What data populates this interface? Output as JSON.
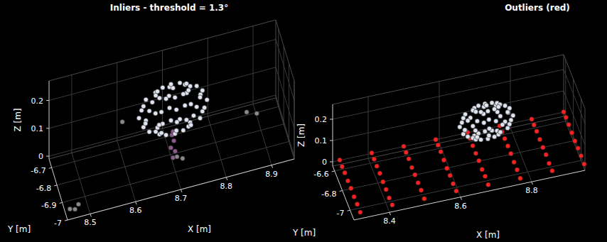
{
  "chart_data": [
    {
      "type": "scatter3d",
      "title": "Inliers - threshold = 1.3°",
      "x_label": "X [m]",
      "y_label": "Y [m]",
      "z_label": "Z [m]",
      "xlim": [
        8.45,
        8.95
      ],
      "ylim": [
        -7.0,
        -6.65
      ],
      "zlim": [
        -0.01,
        0.27
      ],
      "xticks": [
        8.5,
        8.6,
        8.7,
        8.8,
        8.9
      ],
      "yticks": [
        -6.7,
        -6.8,
        -6.9,
        -7
      ],
      "zticks": [
        0,
        0.1,
        0.2
      ],
      "grid": true,
      "series": [
        {
          "color": "#dfe3ef",
          "marker": "circle",
          "x": [
            8.738,
            8.732,
            8.719,
            8.7,
            8.681,
            8.668,
            8.662,
            8.668,
            8.681,
            8.7,
            8.719,
            8.732,
            8.765,
            8.756,
            8.733,
            8.7,
            8.668,
            8.644,
            8.635,
            8.644,
            8.668,
            8.7,
            8.733,
            8.756,
            8.775,
            8.765,
            8.738,
            8.7,
            8.662,
            8.635,
            8.625,
            8.635,
            8.662,
            8.7,
            8.738,
            8.765,
            8.765,
            8.756,
            8.733,
            8.7,
            8.668,
            8.644,
            8.635,
            8.644,
            8.668,
            8.7,
            8.733,
            8.756,
            8.738,
            8.732,
            8.719,
            8.7,
            8.681,
            8.668,
            8.662,
            8.668,
            8.681,
            8.7,
            8.719,
            8.732,
            8.7
          ],
          "y": [
            -6.85,
            -6.831,
            -6.818,
            -6.812,
            -6.818,
            -6.831,
            -6.85,
            -6.869,
            -6.882,
            -6.888,
            -6.882,
            -6.869,
            -6.85,
            -6.818,
            -6.794,
            -6.785,
            -6.794,
            -6.818,
            -6.85,
            -6.883,
            -6.906,
            -6.915,
            -6.906,
            -6.883,
            -6.85,
            -6.813,
            -6.785,
            -6.775,
            -6.785,
            -6.813,
            -6.85,
            -6.888,
            -6.915,
            -6.925,
            -6.915,
            -6.888,
            -6.85,
            -6.818,
            -6.794,
            -6.785,
            -6.794,
            -6.818,
            -6.85,
            -6.883,
            -6.906,
            -6.915,
            -6.906,
            -6.883,
            -6.85,
            -6.831,
            -6.818,
            -6.812,
            -6.818,
            -6.831,
            -6.85,
            -6.869,
            -6.882,
            -6.888,
            -6.882,
            -6.869,
            -6.85
          ],
          "z": [
            0.25,
            0.25,
            0.25,
            0.25,
            0.25,
            0.25,
            0.25,
            0.25,
            0.25,
            0.25,
            0.25,
            0.25,
            0.223,
            0.223,
            0.223,
            0.223,
            0.223,
            0.223,
            0.223,
            0.223,
            0.223,
            0.223,
            0.223,
            0.223,
            0.185,
            0.185,
            0.185,
            0.185,
            0.185,
            0.185,
            0.185,
            0.185,
            0.185,
            0.185,
            0.185,
            0.185,
            0.148,
            0.148,
            0.148,
            0.148,
            0.148,
            0.148,
            0.148,
            0.148,
            0.148,
            0.148,
            0.148,
            0.148,
            0.12,
            0.12,
            0.12,
            0.12,
            0.12,
            0.12,
            0.12,
            0.12,
            0.12,
            0.12,
            0.12,
            0.12,
            0.26
          ]
        },
        {
          "color": "#8c5a8c",
          "marker": "circle",
          "x": [
            8.7,
            8.705,
            8.695,
            8.702,
            8.698,
            8.7
          ],
          "y": [
            -6.85,
            -6.848,
            -6.853,
            -6.85,
            -6.846,
            -6.852
          ],
          "z": [
            0.01,
            0.03,
            0.05,
            0.07,
            0.09,
            0.105
          ]
        },
        {
          "color": "#8a8a8a",
          "marker": "circle",
          "x": [
            8.46,
            8.48,
            8.47,
            8.72,
            8.71,
            8.9,
            8.88,
            8.6
          ],
          "y": [
            -6.96,
            -6.95,
            -6.97,
            -6.86,
            -6.84,
            -6.72,
            -6.7,
            -6.75
          ],
          "z": [
            0,
            0.002,
            0.001,
            0.005,
            0.003,
            0,
            0.001,
            0.12
          ]
        }
      ]
    },
    {
      "type": "scatter3d",
      "title": "Outliers (red)",
      "x_label": "X [m]",
      "y_label": "Y [m]",
      "z_label": "Z [m]",
      "xlim": [
        8.3,
        8.95
      ],
      "ylim": [
        -7.1,
        -6.55
      ],
      "zlim": [
        -0.02,
        0.27
      ],
      "xticks": [
        8.4,
        8.6,
        8.8
      ],
      "yticks": [
        -6.6,
        -6.8,
        -7
      ],
      "zticks": [
        0,
        0.1,
        0.2
      ],
      "grid": true,
      "series": [
        {
          "color": "#dfe3ef",
          "marker": "circle",
          "x": [
            8.738,
            8.732,
            8.719,
            8.7,
            8.681,
            8.668,
            8.662,
            8.668,
            8.681,
            8.7,
            8.719,
            8.732,
            8.765,
            8.756,
            8.733,
            8.7,
            8.668,
            8.644,
            8.635,
            8.644,
            8.668,
            8.7,
            8.733,
            8.756,
            8.775,
            8.765,
            8.738,
            8.7,
            8.662,
            8.635,
            8.625,
            8.635,
            8.662,
            8.7,
            8.738,
            8.765,
            8.765,
            8.756,
            8.733,
            8.7,
            8.668,
            8.644,
            8.635,
            8.644,
            8.668,
            8.7,
            8.733,
            8.756,
            8.738,
            8.732,
            8.719,
            8.7,
            8.681,
            8.668,
            8.662,
            8.668,
            8.681,
            8.7,
            8.719,
            8.732,
            8.7
          ],
          "y": [
            -6.85,
            -6.831,
            -6.818,
            -6.812,
            -6.818,
            -6.831,
            -6.85,
            -6.869,
            -6.882,
            -6.888,
            -6.882,
            -6.869,
            -6.85,
            -6.818,
            -6.794,
            -6.785,
            -6.794,
            -6.818,
            -6.85,
            -6.883,
            -6.906,
            -6.915,
            -6.906,
            -6.883,
            -6.85,
            -6.813,
            -6.785,
            -6.775,
            -6.785,
            -6.813,
            -6.85,
            -6.888,
            -6.915,
            -6.925,
            -6.915,
            -6.888,
            -6.85,
            -6.818,
            -6.794,
            -6.785,
            -6.794,
            -6.818,
            -6.85,
            -6.883,
            -6.906,
            -6.915,
            -6.906,
            -6.883,
            -6.85,
            -6.831,
            -6.818,
            -6.812,
            -6.818,
            -6.831,
            -6.85,
            -6.869,
            -6.882,
            -6.888,
            -6.882,
            -6.869,
            -6.85
          ],
          "z": [
            0.25,
            0.25,
            0.25,
            0.25,
            0.25,
            0.25,
            0.25,
            0.25,
            0.25,
            0.25,
            0.25,
            0.25,
            0.223,
            0.223,
            0.223,
            0.223,
            0.223,
            0.223,
            0.223,
            0.223,
            0.223,
            0.223,
            0.223,
            0.223,
            0.185,
            0.185,
            0.185,
            0.185,
            0.185,
            0.185,
            0.185,
            0.185,
            0.185,
            0.185,
            0.185,
            0.185,
            0.148,
            0.148,
            0.148,
            0.148,
            0.148,
            0.148,
            0.148,
            0.148,
            0.148,
            0.148,
            0.148,
            0.148,
            0.12,
            0.12,
            0.12,
            0.12,
            0.12,
            0.12,
            0.12,
            0.12,
            0.12,
            0.12,
            0.12,
            0.12,
            0.26
          ]
        },
        {
          "color": "#ff2020",
          "marker": "circle",
          "x": [
            8.32,
            8.41,
            8.5,
            8.59,
            8.68,
            8.77,
            8.86,
            8.95,
            8.32,
            8.41,
            8.5,
            8.59,
            8.68,
            8.77,
            8.86,
            8.95,
            8.32,
            8.41,
            8.5,
            8.59,
            8.68,
            8.77,
            8.86,
            8.95,
            8.32,
            8.41,
            8.5,
            8.59,
            8.68,
            8.77,
            8.86,
            8.95,
            8.32,
            8.41,
            8.5,
            8.59,
            8.68,
            8.77,
            8.86,
            8.95,
            8.32,
            8.41,
            8.5,
            8.59,
            8.68,
            8.77,
            8.86,
            8.95,
            8.32,
            8.41,
            8.5,
            8.59,
            8.68,
            8.77,
            8.86,
            8.95,
            8.32,
            8.41,
            8.5,
            8.59,
            8.68,
            8.77,
            8.86,
            8.95
          ],
          "y": [
            -7.08,
            -7.08,
            -7.08,
            -7.08,
            -7.08,
            -7.08,
            -7.08,
            -7.08,
            -7.0,
            -7.0,
            -7.0,
            -7.0,
            -7.0,
            -7.0,
            -7.0,
            -7.0,
            -6.92,
            -6.92,
            -6.92,
            -6.92,
            -6.92,
            -6.92,
            -6.92,
            -6.92,
            -6.84,
            -6.84,
            -6.84,
            -6.84,
            -6.84,
            -6.84,
            -6.84,
            -6.84,
            -6.76,
            -6.76,
            -6.76,
            -6.76,
            -6.76,
            -6.76,
            -6.76,
            -6.76,
            -6.68,
            -6.68,
            -6.68,
            -6.68,
            -6.68,
            -6.68,
            -6.68,
            -6.68,
            -6.61,
            -6.61,
            -6.61,
            -6.61,
            -6.61,
            -6.61,
            -6.61,
            -6.61,
            -6.55,
            -6.55,
            -6.55,
            -6.55,
            -6.55,
            -6.55,
            -6.55,
            -6.55
          ],
          "z": [
            0,
            0.002,
            -0.001,
            0.003,
            0,
            -0.002,
            0.001,
            0,
            0.001,
            -0.002,
            0.002,
            0,
            0.003,
            0.001,
            -0.001,
            0.002,
            -0.001,
            0.001,
            0,
            0.002,
            -0.002,
            0,
            0.003,
            0.001,
            0.002,
            0,
            0.001,
            -0.001,
            0.002,
            0.003,
            0,
            -0.002,
            0,
            0.003,
            -0.002,
            0.001,
            0,
            0.002,
            0.001,
            0,
            0.001,
            0,
            0.002,
            0.003,
            -0.001,
            0,
            0.002,
            0.001,
            -0.002,
            0.001,
            0,
            0.002,
            0.001,
            -0.001,
            0,
            0.003,
            0.001,
            0.002,
            0.001,
            0,
            0.002,
            0,
            -0.001,
            0.001
          ]
        }
      ]
    }
  ]
}
